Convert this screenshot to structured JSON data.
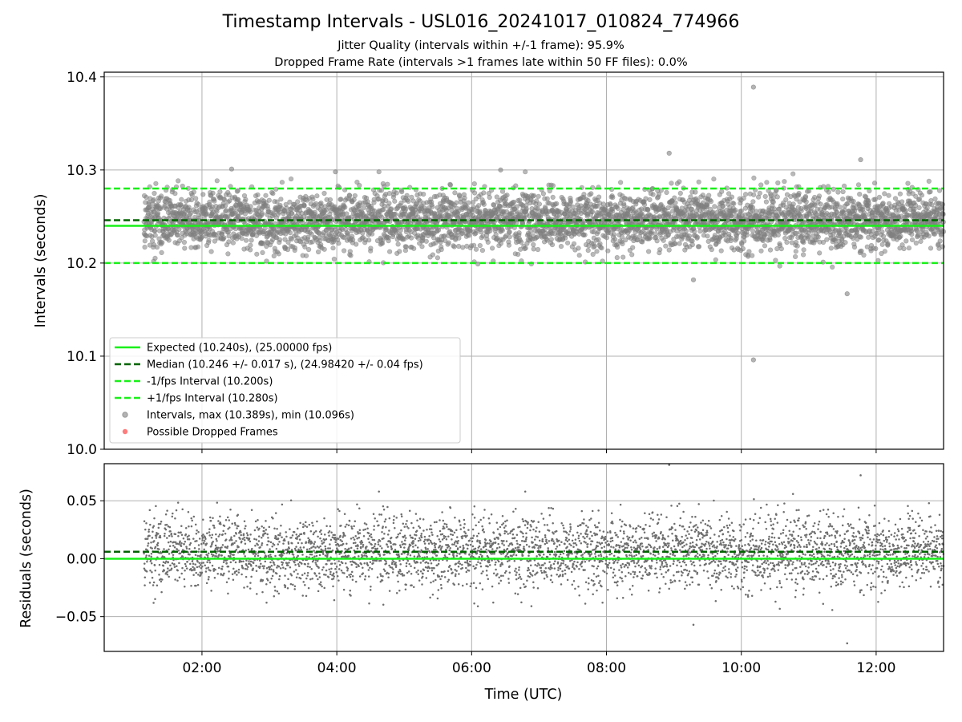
{
  "title": "Timestamp Intervals - USL016_20241017_010824_774966",
  "subtitle_1": "Jitter Quality (intervals within +/-1 frame): 95.9%",
  "subtitle_2": "Dropped Frame Rate (intervals >1 frames late within 50 FF files): 0.0%",
  "colors": {
    "expected": "#19f019",
    "median": "#006400",
    "bound": "#19f019",
    "points": "#808080",
    "dropped": "#ff4444",
    "grid": "#b0b0b0"
  },
  "chart_data": [
    {
      "type": "scatter",
      "name": "intervals-panel",
      "xlabel": "",
      "ylabel": "Intervals (seconds)",
      "xlim_hours": [
        0.55,
        13.0
      ],
      "ylim": [
        10.0,
        10.405
      ],
      "yticks": [
        10.0,
        10.1,
        10.2,
        10.3,
        10.4
      ],
      "ytick_labels": [
        "10.0",
        "10.1",
        "10.2",
        "10.3",
        "10.4"
      ],
      "grid": true,
      "legend_position": "lower-left",
      "reference_lines": [
        {
          "value": 10.24,
          "style": "solid",
          "color_key": "expected",
          "label": "Expected (10.240s), (25.00000 fps)"
        },
        {
          "value": 10.246,
          "style": "dashed",
          "color_key": "median",
          "label": "Median (10.246 +/- 0.017 s), (24.98420 +/- 0.04 fps)"
        },
        {
          "value": 10.2,
          "style": "dashed",
          "color_key": "bound",
          "label": "-1/fps Interval (10.200s)"
        },
        {
          "value": 10.28,
          "style": "dashed",
          "color_key": "bound",
          "label": "+1/fps Interval (10.280s)"
        }
      ],
      "legend_scatter": [
        {
          "label": "Intervals, max (10.389s), min (10.096s)",
          "color_key": "points"
        },
        {
          "label": "Possible Dropped Frames",
          "color_key": "dropped"
        }
      ],
      "series": [
        {
          "name": "Intervals",
          "x_start_hours": 1.14,
          "x_end_hours": 13.0,
          "count": 4170,
          "median": 10.246,
          "std": 0.017,
          "max": 10.389,
          "min": 10.096,
          "notable_points": [
            {
              "x_hours": 10.18,
              "y": 10.389
            },
            {
              "x_hours": 10.18,
              "y": 10.096
            },
            {
              "x_hours": 8.93,
              "y": 10.318
            },
            {
              "x_hours": 11.77,
              "y": 10.311
            },
            {
              "x_hours": 11.57,
              "y": 10.167
            },
            {
              "x_hours": 9.29,
              "y": 10.182
            },
            {
              "x_hours": 2.44,
              "y": 10.301
            },
            {
              "x_hours": 6.43,
              "y": 10.3
            },
            {
              "x_hours": 3.98,
              "y": 10.298
            }
          ]
        }
      ]
    },
    {
      "type": "scatter",
      "name": "residuals-panel",
      "xlabel": "Time (UTC)",
      "ylabel": "Residuals (seconds)",
      "xlim_hours": [
        0.55,
        13.0
      ],
      "ylim": [
        -0.08,
        0.082
      ],
      "yticks": [
        -0.05,
        0.0,
        0.05
      ],
      "ytick_labels": [
        "−0.05",
        "0.00",
        "0.05"
      ],
      "xticks_hours": [
        2,
        4,
        6,
        8,
        10,
        12
      ],
      "xtick_labels": [
        "02:00",
        "04:00",
        "06:00",
        "08:00",
        "10:00",
        "12:00"
      ],
      "grid": true,
      "reference_lines": [
        {
          "value": 0.0,
          "style": "solid",
          "color_key": "expected"
        },
        {
          "value": 0.006,
          "style": "dashed",
          "color_key": "median"
        }
      ],
      "series": [
        {
          "name": "Residuals",
          "x_start_hours": 1.14,
          "x_end_hours": 13.0,
          "count": 4170,
          "mean": 0.006,
          "std": 0.017,
          "max": 0.081,
          "min": -0.073,
          "notable_points": [
            {
              "x_hours": 8.93,
              "y": 0.081
            },
            {
              "x_hours": 11.77,
              "y": 0.072
            },
            {
              "x_hours": 11.57,
              "y": -0.073
            },
            {
              "x_hours": 9.29,
              "y": -0.057
            }
          ]
        }
      ]
    }
  ]
}
